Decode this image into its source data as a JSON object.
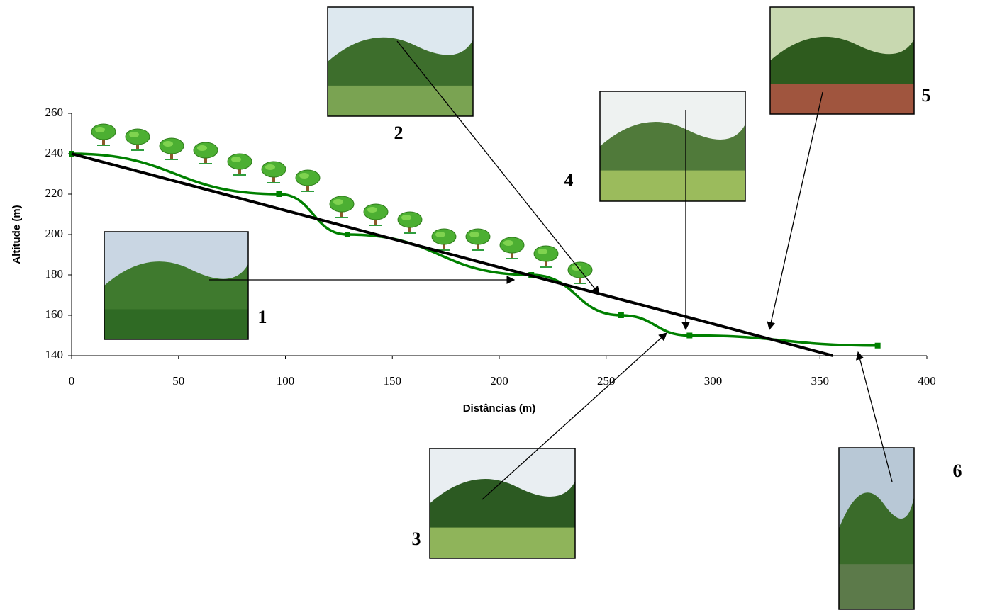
{
  "chart_data": {
    "type": "line",
    "x_label": "Distâncias (m)",
    "y_label": "Altitude (m)",
    "series": [
      {
        "color": "#008000",
        "x": [
          0,
          97,
          129,
          215,
          257,
          289,
          377
        ],
        "values": [
          240,
          220,
          200,
          180,
          160,
          150,
          145
        ]
      },
      {
        "color": "#000000",
        "x": [
          0,
          356
        ],
        "values": [
          240,
          140
        ]
      }
    ],
    "xlim": [
      0,
      400
    ],
    "ylim": [
      140,
      260
    ],
    "xticks": [
      0,
      50,
      100,
      150,
      200,
      250,
      300,
      350,
      400
    ],
    "yticks": [
      140,
      160,
      180,
      200,
      220,
      240,
      260
    ],
    "annotations": [
      "1",
      "2",
      "3",
      "4",
      "5",
      "6"
    ]
  }
}
